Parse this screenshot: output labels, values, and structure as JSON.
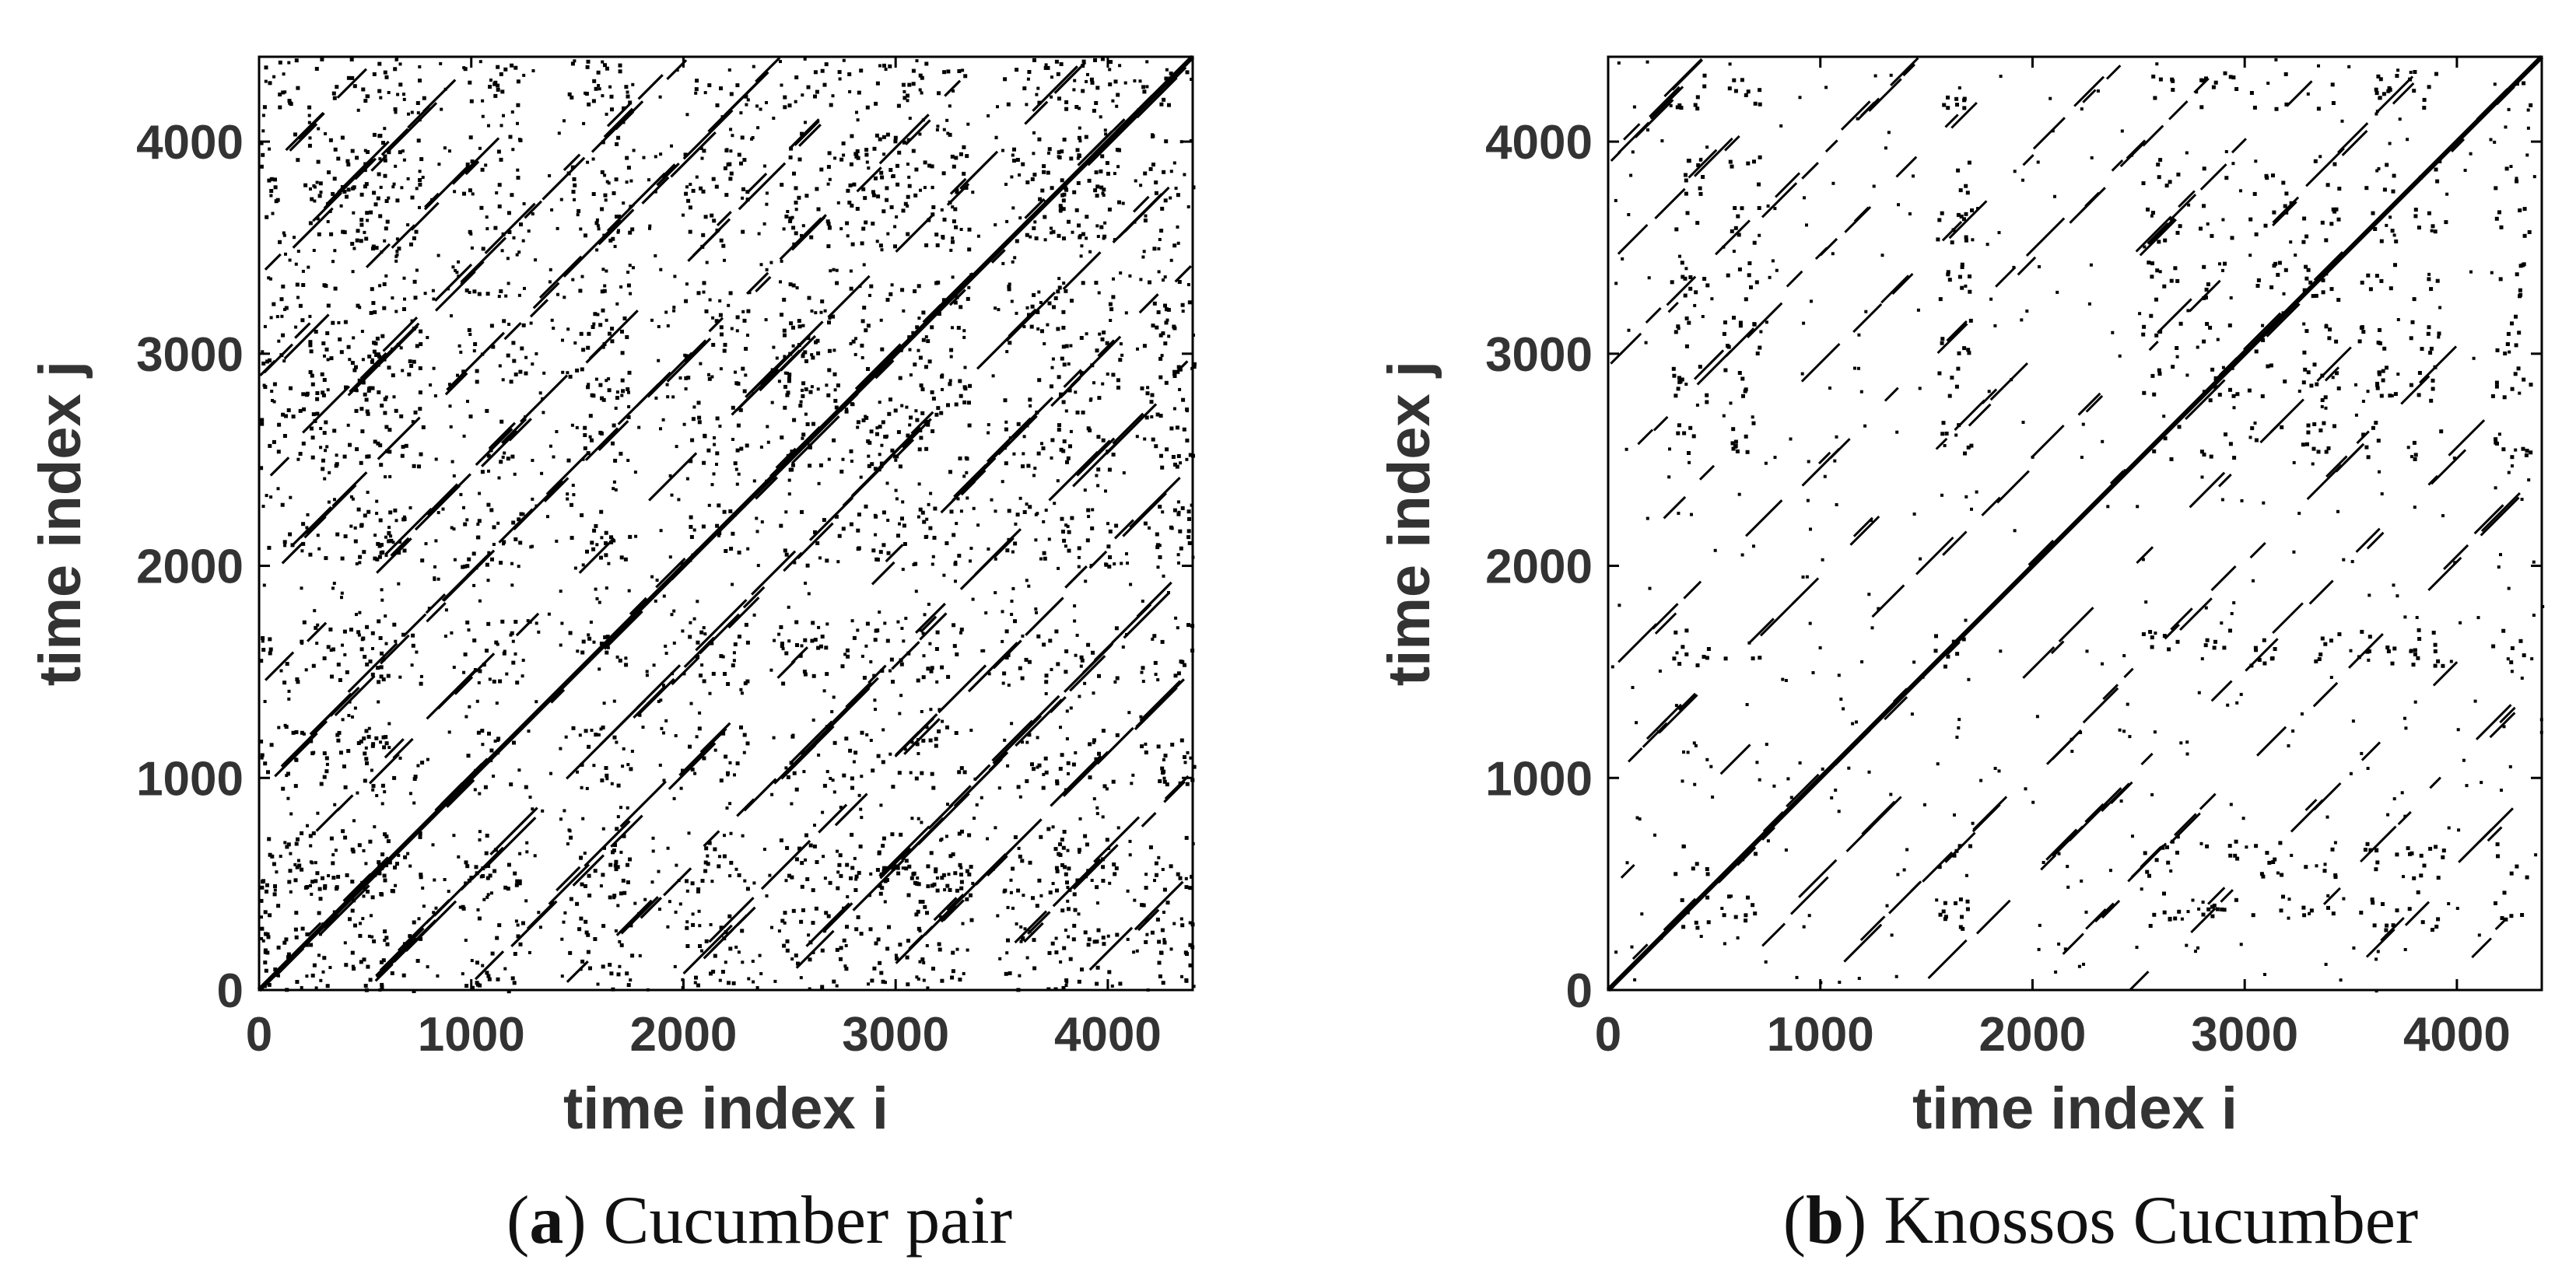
{
  "chart_data": [
    {
      "type": "heatmap",
      "caption_letter": "a",
      "caption_text": "Cucumber pair",
      "xlabel": "time index i",
      "ylabel": "time index j",
      "xlim": [
        0,
        4400
      ],
      "ylim": [
        0,
        4400
      ],
      "xticks": [
        0,
        1000,
        2000,
        3000,
        4000
      ],
      "yticks": [
        0,
        1000,
        2000,
        3000,
        4000
      ],
      "xtick_labels": [
        "0",
        "1000",
        "2000",
        "3000",
        "4000"
      ],
      "ytick_labels": [
        "0",
        "1000",
        "2000",
        "3000",
        "4000"
      ],
      "grid": false,
      "colors": {
        "recurrence": "#000000",
        "background": "#ffffff"
      },
      "block_centers": [
        150,
        450,
        620,
        1100,
        1600,
        2150,
        2600,
        2900,
        3200,
        3650,
        3900,
        4300
      ],
      "diagonal_band_spacing": 480,
      "density": "high"
    },
    {
      "type": "heatmap",
      "caption_letter": "b",
      "caption_text": "Knossos Cucumber",
      "xlabel": "time index i",
      "ylabel": "time index j",
      "xlim": [
        0,
        4400
      ],
      "ylim": [
        0,
        4400
      ],
      "xticks": [
        0,
        1000,
        2000,
        3000,
        4000
      ],
      "yticks": [
        0,
        1000,
        2000,
        3000,
        4000
      ],
      "xtick_labels": [
        "0",
        "1000",
        "2000",
        "3000",
        "4000"
      ],
      "ytick_labels": [
        "0",
        "1000",
        "2000",
        "3000",
        "4000"
      ],
      "grid": false,
      "colors": {
        "recurrence": "#000000",
        "background": "#ffffff"
      },
      "block_centers": [
        380,
        620,
        1620,
        2600,
        2870,
        3100,
        3350,
        3620,
        3850,
        4250
      ],
      "diagonal_band_spacing": 490,
      "density": "sparse"
    }
  ]
}
